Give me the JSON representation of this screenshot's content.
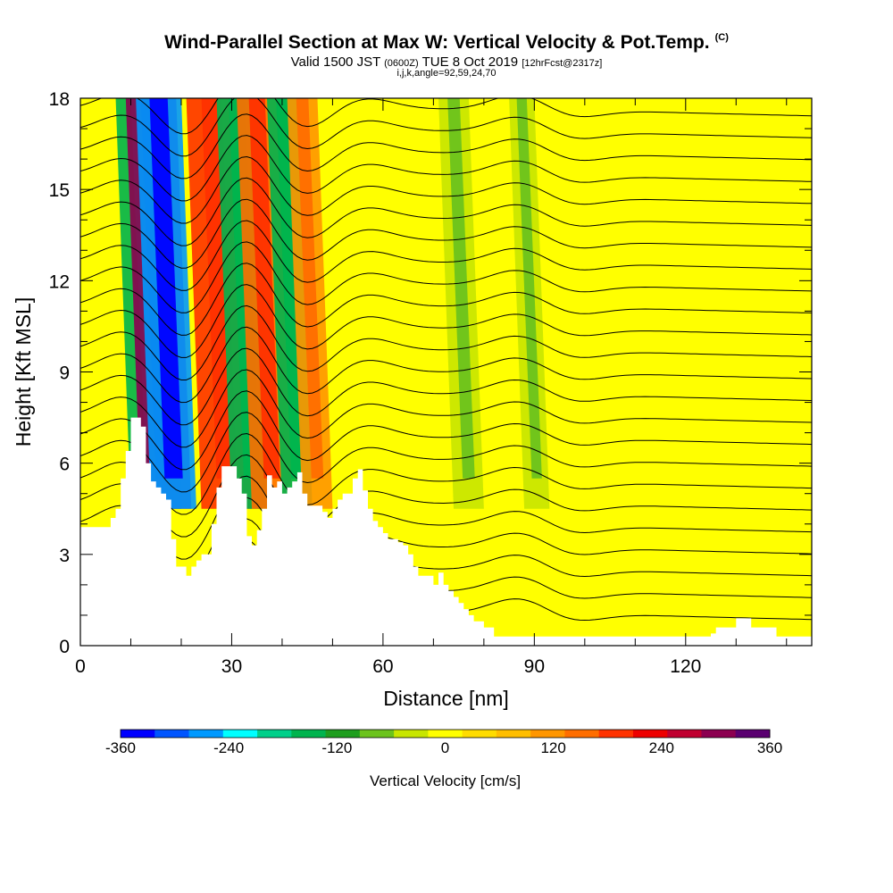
{
  "chart_data": {
    "type": "heatmap",
    "title": "Wind-Parallel Section at Max W: Vertical Velocity & Pot.Temp.",
    "title_mark": "(C)",
    "subtitle_main_a": "Valid 1500 JST",
    "subtitle_small_a": "(0600Z)",
    "subtitle_main_b": "TUE 8 Oct 2019",
    "subtitle_small_b": "[12hrFcst@2317z]",
    "subtitle2": "i,j,k,angle=92,59,24,70",
    "xlabel": "Distance [nm]",
    "ylabel": "Height [Kft MSL]",
    "xlim": [
      0,
      145
    ],
    "ylim": [
      0,
      18
    ],
    "xticks": [
      "0",
      "30",
      "60",
      "90",
      "120"
    ],
    "xtick_values": [
      0,
      30,
      60,
      90,
      120
    ],
    "yticks": [
      "0",
      "3",
      "6",
      "9",
      "12",
      "15",
      "18"
    ],
    "ytick_values": [
      0,
      3,
      6,
      9,
      12,
      15,
      18
    ],
    "colorbar": {
      "label": "Vertical Velocity [cm/s]",
      "ticks": [
        "-360",
        "-240",
        "-120",
        "0",
        "120",
        "240",
        "360"
      ],
      "tick_values": [
        -360,
        -240,
        -120,
        0,
        120,
        240,
        360
      ],
      "colors": [
        "#0000ff",
        "#0055ff",
        "#0099ff",
        "#00ffff",
        "#00d08a",
        "#00b44e",
        "#1e9e1e",
        "#6cc31c",
        "#c8e600",
        "#ffff00",
        "#ffdc00",
        "#ffbe00",
        "#ff9600",
        "#ff6e00",
        "#ff3200",
        "#ee0000",
        "#c00030",
        "#8c0050",
        "#5a0070"
      ]
    },
    "terrain": [
      [
        0,
        3.9
      ],
      [
        6,
        3.9
      ],
      [
        6,
        4.2
      ],
      [
        7,
        4.2
      ],
      [
        7,
        4.5
      ],
      [
        8,
        4.5
      ],
      [
        8,
        5.5
      ],
      [
        9,
        5.5
      ],
      [
        9,
        6.4
      ],
      [
        10,
        6.4
      ],
      [
        10,
        7.5
      ],
      [
        12,
        7.5
      ],
      [
        12,
        7.2
      ],
      [
        13,
        7.2
      ],
      [
        13,
        6.0
      ],
      [
        14,
        6.0
      ],
      [
        14,
        5.4
      ],
      [
        15,
        5.4
      ],
      [
        15,
        5.2
      ],
      [
        16,
        5.2
      ],
      [
        16,
        5.0
      ],
      [
        17,
        5.0
      ],
      [
        17,
        4.8
      ],
      [
        18,
        4.8
      ],
      [
        18,
        3.5
      ],
      [
        19,
        3.5
      ],
      [
        19,
        2.6
      ],
      [
        20,
        2.6
      ],
      [
        20,
        2.6
      ],
      [
        21,
        2.6
      ],
      [
        21,
        2.3
      ],
      [
        22,
        2.3
      ],
      [
        22,
        2.6
      ],
      [
        23,
        2.6
      ],
      [
        23,
        2.8
      ],
      [
        24,
        2.8
      ],
      [
        24,
        3.0
      ],
      [
        26,
        3.0
      ],
      [
        26,
        4.0
      ],
      [
        27,
        4.0
      ],
      [
        27,
        5.2
      ],
      [
        28,
        5.2
      ],
      [
        28,
        5.9
      ],
      [
        31,
        5.9
      ],
      [
        31,
        5.5
      ],
      [
        32,
        5.5
      ],
      [
        32,
        5.0
      ],
      [
        33,
        5.0
      ],
      [
        33,
        3.6
      ],
      [
        34,
        3.6
      ],
      [
        34,
        3.3
      ],
      [
        35,
        3.3
      ],
      [
        35,
        3.8
      ],
      [
        36,
        3.8
      ],
      [
        36,
        4.5
      ],
      [
        37,
        4.5
      ],
      [
        37,
        5.6
      ],
      [
        38,
        5.6
      ],
      [
        38,
        5.2
      ],
      [
        39,
        5.2
      ],
      [
        39,
        5.4
      ],
      [
        40,
        5.4
      ],
      [
        40,
        5.0
      ],
      [
        41,
        5.0
      ],
      [
        41,
        5.2
      ],
      [
        42,
        5.2
      ],
      [
        42,
        5.4
      ],
      [
        43,
        5.4
      ],
      [
        43,
        5.7
      ],
      [
        44,
        5.7
      ],
      [
        44,
        5.0
      ],
      [
        45,
        5.0
      ],
      [
        45,
        4.6
      ],
      [
        48,
        4.6
      ],
      [
        48,
        4.4
      ],
      [
        49,
        4.4
      ],
      [
        49,
        4.2
      ],
      [
        50,
        4.2
      ],
      [
        50,
        4.5
      ],
      [
        51,
        4.5
      ],
      [
        51,
        4.8
      ],
      [
        52,
        4.8
      ],
      [
        52,
        5.0
      ],
      [
        54,
        5.0
      ],
      [
        54,
        5.5
      ],
      [
        55,
        5.5
      ],
      [
        55,
        5.8
      ],
      [
        56,
        5.8
      ],
      [
        56,
        5.1
      ],
      [
        57,
        5.1
      ],
      [
        57,
        4.5
      ],
      [
        58,
        4.5
      ],
      [
        58,
        4.1
      ],
      [
        59,
        4.1
      ],
      [
        59,
        3.9
      ],
      [
        60,
        3.9
      ],
      [
        60,
        3.7
      ],
      [
        61,
        3.7
      ],
      [
        61,
        3.5
      ],
      [
        63,
        3.5
      ],
      [
        63,
        3.4
      ],
      [
        64,
        3.4
      ],
      [
        64,
        3.3
      ],
      [
        65,
        3.3
      ],
      [
        65,
        3.0
      ],
      [
        66,
        3.0
      ],
      [
        66,
        2.6
      ],
      [
        67,
        2.6
      ],
      [
        67,
        2.3
      ],
      [
        70,
        2.3
      ],
      [
        70,
        2.0
      ],
      [
        71,
        2.0
      ],
      [
        71,
        2.4
      ],
      [
        72,
        2.4
      ],
      [
        72,
        2.0
      ],
      [
        73,
        2.0
      ],
      [
        73,
        1.8
      ],
      [
        74,
        1.8
      ],
      [
        74,
        1.6
      ],
      [
        75,
        1.6
      ],
      [
        75,
        1.4
      ],
      [
        76,
        1.4
      ],
      [
        76,
        1.2
      ],
      [
        77,
        1.2
      ],
      [
        77,
        1.0
      ],
      [
        78,
        1.0
      ],
      [
        78,
        0.8
      ],
      [
        80,
        0.8
      ],
      [
        80,
        0.6
      ],
      [
        82,
        0.6
      ],
      [
        82,
        0.3
      ],
      [
        125,
        0.3
      ],
      [
        125,
        0.4
      ],
      [
        126,
        0.4
      ],
      [
        126,
        0.6
      ],
      [
        130,
        0.6
      ],
      [
        130,
        0.9
      ],
      [
        133,
        0.9
      ],
      [
        133,
        0.6
      ],
      [
        138,
        0.6
      ],
      [
        138,
        0.3
      ],
      [
        145,
        0.3
      ]
    ],
    "updraft_bands": [
      {
        "x0": 10,
        "x1": 20,
        "w": -180
      },
      {
        "x0": 12,
        "x1": 22,
        "w": 300
      },
      {
        "x0": 14,
        "x1": 23,
        "w": -300
      },
      {
        "x0": 24,
        "x1": 34,
        "w": 180
      },
      {
        "x0": 30,
        "x1": 38,
        "w": -150
      },
      {
        "x0": 34,
        "x1": 42,
        "w": 150
      },
      {
        "x0": 40,
        "x1": 46,
        "w": -150
      },
      {
        "x0": 44,
        "x1": 50,
        "w": 120
      },
      {
        "x0": 74,
        "x1": 80,
        "w": -60
      },
      {
        "x0": 88,
        "x1": 93,
        "w": -60
      }
    ]
  }
}
